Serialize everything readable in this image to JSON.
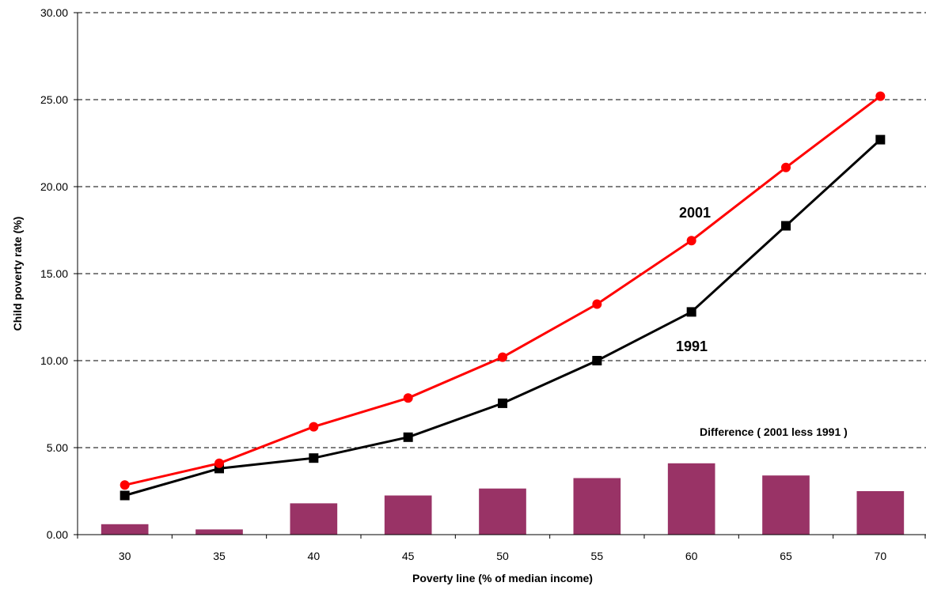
{
  "chart_data": {
    "type": "line",
    "x": [
      30,
      35,
      40,
      45,
      50,
      55,
      60,
      65,
      70
    ],
    "xlabel": "Poverty line (% of median income)",
    "ylabel": "Child poverty rate (%)",
    "ylim": [
      0,
      30
    ],
    "yticks": [
      "0.00",
      "5.00",
      "10.00",
      "15.00",
      "20.00",
      "25.00",
      "30.00"
    ],
    "grid": "horizontal-dashed",
    "series": [
      {
        "name": "2001",
        "color": "#ff0000",
        "marker": "circle",
        "values": [
          2.85,
          4.1,
          6.2,
          7.85,
          10.2,
          13.25,
          16.9,
          21.1,
          25.2
        ]
      },
      {
        "name": "1991",
        "color": "#000000",
        "marker": "square",
        "values": [
          2.25,
          3.8,
          4.4,
          5.6,
          7.55,
          10.0,
          12.8,
          17.75,
          22.7
        ]
      }
    ],
    "bars": {
      "name": "Difference ( 2001 less 1991 )",
      "color": "#993366",
      "values": [
        0.6,
        0.3,
        1.8,
        2.25,
        2.65,
        3.25,
        4.1,
        3.4,
        2.5
      ]
    }
  }
}
